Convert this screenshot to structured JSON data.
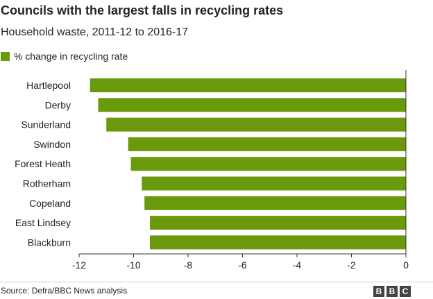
{
  "colors": {
    "bar": "#6a9a0b",
    "axis": "#333333",
    "grid": "#cccccc",
    "text": "#222222"
  },
  "chart_data": {
    "type": "bar",
    "orientation": "horizontal",
    "title": "Councils with the largest falls in recycling rates",
    "subtitle": "Household waste, 2011-12 to 2016-17",
    "categories": [
      "Hartlepool",
      "Derby",
      "Sunderland",
      "Swindon",
      "Forest Heath",
      "Rotherham",
      "Copeland",
      "East Lindsey",
      "Blackburn"
    ],
    "series": [
      {
        "name": "% change in recycling rate",
        "values": [
          -11.6,
          -11.3,
          -11.0,
          -10.2,
          -10.1,
          -9.7,
          -9.6,
          -9.4,
          -9.4
        ]
      }
    ],
    "xlim": [
      -12,
      0
    ],
    "xticks": [
      -12,
      -10,
      -8,
      -6,
      -4,
      -2,
      0
    ],
    "grid": false,
    "legend": "top-left"
  },
  "footer": {
    "source": "Source: Defra/BBC News analysis",
    "logo": [
      "B",
      "B",
      "C"
    ]
  }
}
